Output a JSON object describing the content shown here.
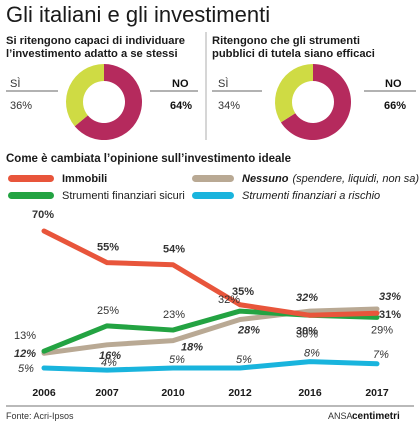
{
  "title": "Gli italiani e gli investimenti",
  "pies": [
    {
      "subtitle_lines": [
        "Si ritengono capaci di individuare",
        "l’investimento adatto a se stessi"
      ],
      "si_label": "SÌ",
      "si_value": "36%",
      "no_label": "NO",
      "no_value": "64%",
      "si_share": 36,
      "no_share": 64
    },
    {
      "subtitle_lines": [
        "Ritengono che gli strumenti",
        "pubblici di tutela siano efficaci"
      ],
      "si_label": "SÌ",
      "si_value": "34%",
      "no_label": "NO",
      "no_value": "66%",
      "si_share": 34,
      "no_share": 66
    }
  ],
  "colors": {
    "no": "#b52a5d",
    "si": "#cfdb44",
    "immobili": "#e8553b",
    "nessuno": "#b9a994",
    "sicuri": "#23a342",
    "rischio": "#19b4dd"
  },
  "section_title": "Come è cambiata l’opinione sull’investimento ideale",
  "legend": {
    "immobili": "Immobili",
    "nessuno_main": "Nessuno",
    "nessuno_detail": "(spendere, liquidi, non sa)",
    "sicuri": "Strumenti finanziari sicuri",
    "rischio": "Strumenti finanziari a rischio"
  },
  "chart_data": {
    "type": "line",
    "categories": [
      "2006",
      "2007",
      "2010",
      "2012",
      "2016",
      "2017"
    ],
    "series": [
      {
        "name": "Immobili",
        "values": [
          70,
          55,
          54,
          35,
          30,
          31
        ],
        "labels": [
          "70%",
          "55%",
          "54%",
          "35%",
          "30%",
          "31%"
        ]
      },
      {
        "name": "Nessuno (spendere, liquidi, non sa)",
        "values": [
          12,
          16,
          18,
          28,
          32,
          33
        ],
        "labels": [
          "12%",
          "16%",
          "18%",
          "28%",
          "32%",
          "33%"
        ]
      },
      {
        "name": "Strumenti finanziari sicuri",
        "values": [
          13,
          25,
          23,
          32,
          30,
          29
        ],
        "labels": [
          "13%",
          "25%",
          "23%",
          "32%",
          "30%",
          "29%"
        ]
      },
      {
        "name": "Strumenti finanziari a rischio",
        "values": [
          5,
          4,
          5,
          5,
          8,
          7
        ],
        "labels": [
          "5%",
          "4%",
          "5%",
          "5%",
          "8%",
          "7%"
        ]
      }
    ]
  },
  "footer": {
    "source": "Fonte: Acri-Ipsos",
    "agency": "ANSA",
    "brand": "centimetri"
  }
}
